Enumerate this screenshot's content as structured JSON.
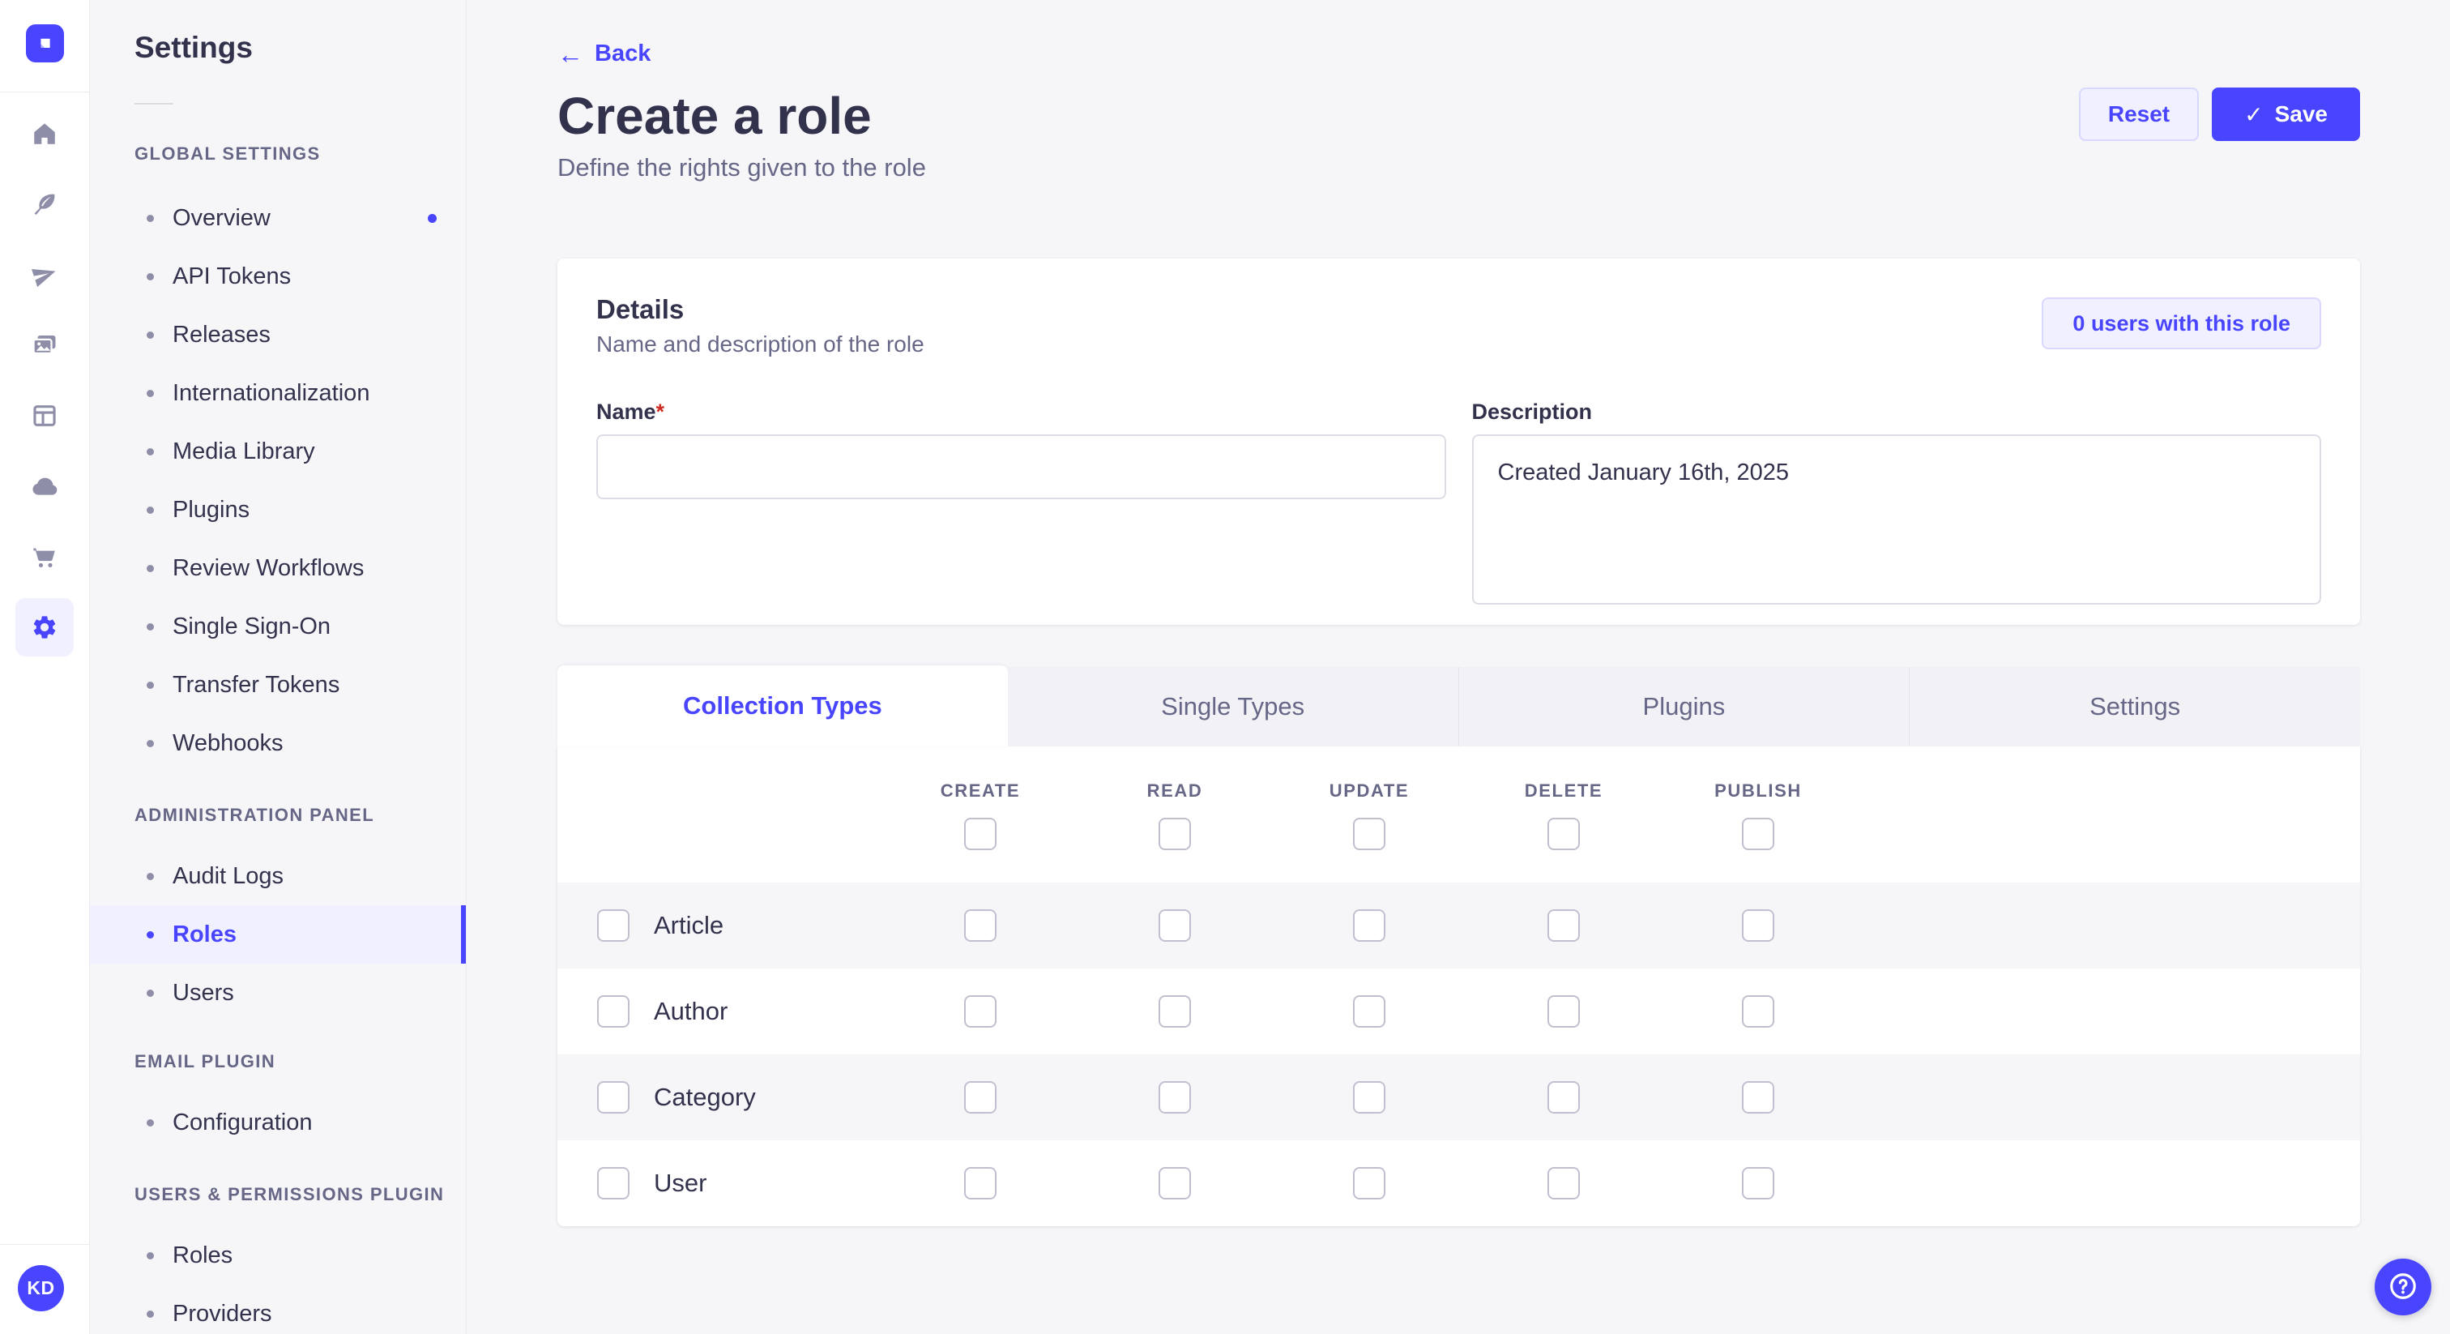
{
  "colors": {
    "primary": "#4945ff",
    "primary_light_bg": "#f0f0ff",
    "primary_border": "#d9d8ff",
    "text_dark": "#32324d",
    "text_muted": "#666687",
    "page_bg": "#f6f6f9",
    "required_red": "#d02b20",
    "checkbox_border": "#c0c0cf"
  },
  "nav_rail": {
    "logo_icon": "strapi-logo",
    "icons": [
      {
        "name": "home-icon"
      },
      {
        "name": "feather-icon"
      },
      {
        "name": "paper-plane-icon"
      },
      {
        "name": "media-library-icon"
      },
      {
        "name": "layout-icon"
      },
      {
        "name": "cloud-icon"
      },
      {
        "name": "cart-icon"
      },
      {
        "name": "settings-gear-icon",
        "active": true
      }
    ],
    "avatar_initials": "KD"
  },
  "sidebar": {
    "title": "Settings",
    "sections": [
      {
        "label": "GLOBAL SETTINGS",
        "items": [
          {
            "label": "Overview",
            "notification_dot": true
          },
          {
            "label": "API Tokens"
          },
          {
            "label": "Releases"
          },
          {
            "label": "Internationalization"
          },
          {
            "label": "Media Library"
          },
          {
            "label": "Plugins"
          },
          {
            "label": "Review Workflows"
          },
          {
            "label": "Single Sign-On"
          },
          {
            "label": "Transfer Tokens"
          },
          {
            "label": "Webhooks"
          }
        ]
      },
      {
        "label": "ADMINISTRATION PANEL",
        "items": [
          {
            "label": "Audit Logs"
          },
          {
            "label": "Roles",
            "active": true
          },
          {
            "label": "Users"
          }
        ]
      },
      {
        "label": "EMAIL PLUGIN",
        "items": [
          {
            "label": "Configuration"
          }
        ]
      },
      {
        "label": "USERS & PERMISSIONS PLUGIN",
        "items": [
          {
            "label": "Roles"
          },
          {
            "label": "Providers"
          }
        ]
      }
    ]
  },
  "header": {
    "back_label": "Back",
    "title": "Create a role",
    "subtitle": "Define the rights given to the role",
    "reset_label": "Reset",
    "save_label": "Save"
  },
  "details": {
    "heading": "Details",
    "subheading": "Name and description of the role",
    "users_button": "0 users with this role",
    "name_label": "Name",
    "required_mark": "*",
    "name_value": "",
    "description_label": "Description",
    "description_value": "Created January 16th, 2025"
  },
  "permissions": {
    "tabs": [
      {
        "label": "Collection Types",
        "active": true
      },
      {
        "label": "Single Types"
      },
      {
        "label": "Plugins"
      },
      {
        "label": "Settings"
      }
    ],
    "columns": [
      "CREATE",
      "READ",
      "UPDATE",
      "DELETE",
      "PUBLISH"
    ],
    "rows": [
      {
        "label": "Article"
      },
      {
        "label": "Author"
      },
      {
        "label": "Category"
      },
      {
        "label": "User"
      }
    ]
  }
}
